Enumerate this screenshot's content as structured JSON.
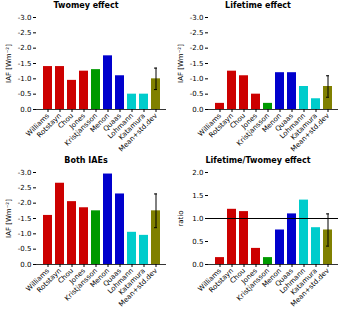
{
  "chart_data": [
    {
      "type": "bar",
      "title": "Twomey effect",
      "ylabel": "IAF [Wm⁻²]",
      "categories": [
        "Williams",
        "Rotstayn",
        "Chou",
        "Jones",
        "Kristjansson",
        "Menon",
        "Quaas",
        "Lohmann",
        "Katamura",
        "Mean+std.dev"
      ],
      "values": [
        -1.4,
        -1.4,
        -0.95,
        -1.25,
        -1.3,
        -1.75,
        -1.1,
        -0.5,
        -0.5,
        -1.0
      ],
      "errors": [
        0.0,
        0.0,
        0.0,
        0.0,
        0.0,
        0.0,
        0.0,
        0.0,
        0.0,
        0.35
      ],
      "colors": [
        "#cc0000",
        "#cc0000",
        "#cc0000",
        "#cc0000",
        "#009900",
        "#0000cc",
        "#0000cc",
        "#00cccc",
        "#00cccc",
        "#808000"
      ],
      "ylim": [
        0.0,
        -3.0
      ],
      "yticks": [
        {
          "value": -3.0,
          "label": "-3.0"
        },
        -2.5,
        {
          "value": -2.0,
          "label": "-2.0"
        },
        -1.5,
        {
          "value": -1.0,
          "label": "-1.0"
        },
        -0.5,
        {
          "value": 0.0,
          "label": "0.0"
        }
      ]
    },
    {
      "type": "bar",
      "title": "Lifetime effect",
      "ylabel": "IAF [Wm⁻²]",
      "categories": [
        "Williams",
        "Rotstayn",
        "Chou",
        "Jones",
        "Kristjansson",
        "Menon",
        "Quaas",
        "Lohmann",
        "Katamura",
        "Mean+std.dev"
      ],
      "values": [
        -0.2,
        -1.25,
        -1.1,
        -0.5,
        -0.2,
        -1.2,
        -1.2,
        -0.75,
        -0.35,
        -0.75
      ],
      "errors": [
        0.0,
        0.0,
        0.0,
        0.0,
        0.0,
        0.0,
        0.0,
        0.0,
        0.0,
        0.35
      ],
      "colors": [
        "#cc0000",
        "#cc0000",
        "#cc0000",
        "#cc0000",
        "#009900",
        "#0000cc",
        "#0000cc",
        "#00cccc",
        "#00cccc",
        "#808000"
      ],
      "ylim": [
        0.0,
        -3.0
      ],
      "yticks": [
        {
          "value": -3.0,
          "label": "-3.0"
        },
        -2.5,
        {
          "value": -2.0,
          "label": "-2.0"
        },
        -1.5,
        {
          "value": -1.0,
          "label": "-1.0"
        },
        -0.5,
        {
          "value": 0.0,
          "label": "0.0"
        }
      ]
    },
    {
      "type": "bar",
      "title": "Both IAEs",
      "ylabel": "IAF [Wm⁻²]",
      "categories": [
        "Williams",
        "Rotstayn",
        "Chou",
        "Jones",
        "Kristjansson",
        "Menon",
        "Quaas",
        "Lohmann",
        "Katamura",
        "Mean+std.dev"
      ],
      "values": [
        -1.6,
        -2.65,
        -2.05,
        -1.85,
        -1.75,
        -2.95,
        -2.3,
        -1.05,
        -0.95,
        -1.75
      ],
      "errors": [
        0.0,
        0.0,
        0.0,
        0.0,
        0.0,
        0.0,
        0.0,
        0.0,
        0.0,
        0.55
      ],
      "colors": [
        "#cc0000",
        "#cc0000",
        "#cc0000",
        "#cc0000",
        "#009900",
        "#0000cc",
        "#0000cc",
        "#00cccc",
        "#00cccc",
        "#808000"
      ],
      "ylim": [
        0.0,
        -3.0
      ],
      "yticks": [
        {
          "value": -3.0,
          "label": "-3.0"
        },
        -2.5,
        {
          "value": -2.0,
          "label": "-2.0"
        },
        -1.5,
        {
          "value": -1.0,
          "label": "-1.0"
        },
        -0.5,
        {
          "value": 0.0,
          "label": "0.0"
        }
      ]
    },
    {
      "type": "bar",
      "title": "Lifetime/Twomey effect",
      "ylabel": "ratio",
      "categories": [
        "Williams",
        "Rotstayn",
        "Chou",
        "Jones",
        "Kristjansson",
        "Menon",
        "Quaas",
        "Lohmann",
        "Katamura",
        "Mean+std.dev"
      ],
      "values": [
        0.15,
        1.2,
        1.15,
        0.35,
        0.15,
        0.75,
        1.1,
        1.4,
        0.8,
        0.75
      ],
      "errors": [
        0.0,
        0.0,
        0.0,
        0.0,
        0.0,
        0.0,
        0.0,
        0.0,
        0.0,
        0.35
      ],
      "colors": [
        "#cc0000",
        "#cc0000",
        "#cc0000",
        "#cc0000",
        "#009900",
        "#0000cc",
        "#0000cc",
        "#00cccc",
        "#00cccc",
        "#808000"
      ],
      "ylim": [
        0.0,
        2.0
      ],
      "yticks": [
        {
          "value": 0.0,
          "label": "0.0"
        },
        0.5,
        {
          "value": 1.0,
          "label": "1.0"
        },
        1.5,
        {
          "value": 2.0,
          "label": "2.0"
        }
      ],
      "hline": 1.0
    }
  ]
}
